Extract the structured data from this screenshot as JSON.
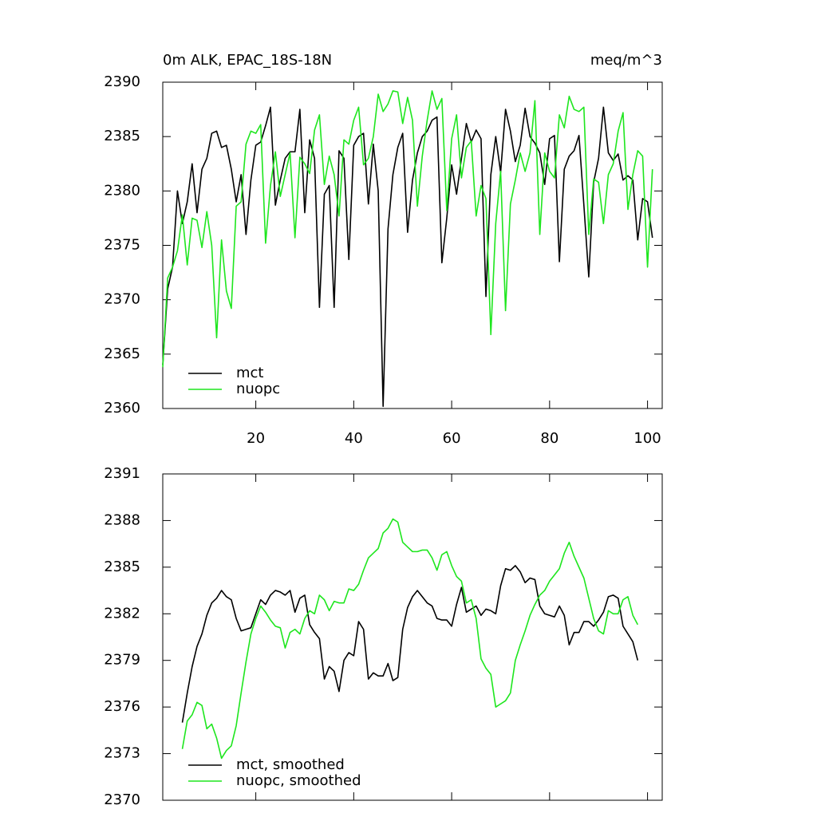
{
  "chart_data": [
    {
      "type": "line",
      "title": "0m ALK, EPAC_18S-18N",
      "subtitle": "meq/m^3",
      "x": [
        1,
        2,
        3,
        4,
        5,
        6,
        7,
        8,
        9,
        10,
        11,
        12,
        13,
        14,
        15,
        16,
        17,
        18,
        19,
        20,
        21,
        22,
        23,
        24,
        25,
        26,
        27,
        28,
        29,
        30,
        31,
        32,
        33,
        34,
        35,
        36,
        37,
        38,
        39,
        40,
        41,
        42,
        43,
        44,
        45,
        46,
        47,
        48,
        49,
        50,
        51,
        52,
        53,
        54,
        55,
        56,
        57,
        58,
        59,
        60,
        61,
        62,
        63,
        64,
        65,
        66,
        67,
        68,
        69,
        70,
        71,
        72,
        73,
        74,
        75,
        76,
        77,
        78,
        79,
        80,
        81,
        82,
        83,
        84,
        85,
        86,
        87,
        88,
        89,
        90,
        91,
        92,
        93,
        94,
        95,
        96,
        97,
        98,
        99,
        100,
        101
      ],
      "series": [
        {
          "name": "mct",
          "color": "#000000",
          "values": [
            2364,
            2371,
            2373,
            2380,
            2377,
            2379,
            2382.5,
            2378,
            2382,
            2383,
            2385.3,
            2385.5,
            2384,
            2384.2,
            2382,
            2379,
            2381.5,
            2376,
            2381,
            2384.2,
            2384.5,
            2386,
            2387.7,
            2378.7,
            2381,
            2383,
            2383.6,
            2383.6,
            2387.5,
            2378,
            2384.7,
            2383,
            2369.3,
            2379.7,
            2380.5,
            2369.3,
            2383.7,
            2383,
            2373.7,
            2384.2,
            2385,
            2385.3,
            2378.8,
            2384.3,
            2380,
            2360.2,
            2376.5,
            2381.5,
            2384,
            2385.3,
            2376.2,
            2381,
            2383.5,
            2385,
            2385.5,
            2386.5,
            2386.8,
            2373.4,
            2377.5,
            2382.4,
            2379.7,
            2383,
            2386.2,
            2384.5,
            2385.6,
            2384.8,
            2370.3,
            2381.5,
            2385,
            2381.7,
            2387.5,
            2385.5,
            2382.7,
            2384.2,
            2387.6,
            2385,
            2384.4,
            2383.5,
            2380.6,
            2384.8,
            2385.1,
            2373.5,
            2382,
            2383.2,
            2383.7,
            2385.1,
            2378.7,
            2372.1,
            2380.8,
            2383,
            2387.7,
            2383.5,
            2382.8,
            2383.4,
            2381,
            2381.4,
            2381,
            2375.5,
            2379.3,
            2379,
            2375.7
          ]
        },
        {
          "name": "nuopc",
          "color": "#1ee61e",
          "values": [
            2363.8,
            2372,
            2373,
            2374.5,
            2377.8,
            2373.2,
            2377.5,
            2377.3,
            2374.8,
            2378.1,
            2375,
            2366.5,
            2375.5,
            2370.8,
            2369.2,
            2378.6,
            2379,
            2384.3,
            2385.5,
            2385.3,
            2386.1,
            2375.2,
            2380.5,
            2383.6,
            2379.5,
            2381.5,
            2383.5,
            2375.7,
            2383.1,
            2382.5,
            2381.6,
            2385.6,
            2387,
            2380.6,
            2383.2,
            2381.5,
            2377.7,
            2384.7,
            2384.3,
            2386.5,
            2387.7,
            2382.4,
            2383,
            2385,
            2388.9,
            2387.3,
            2388,
            2389.2,
            2389.1,
            2386.2,
            2388.6,
            2386.5,
            2378.6,
            2383.2,
            2386.5,
            2389.2,
            2387.5,
            2388.5,
            2378.2,
            2384.8,
            2387,
            2381.2,
            2384,
            2384.6,
            2377.7,
            2380.5,
            2379.3,
            2366.8,
            2377,
            2381.8,
            2369,
            2378.8,
            2381,
            2383.5,
            2381.8,
            2383.5,
            2388.3,
            2376,
            2383.5,
            2381.8,
            2381.2,
            2387,
            2385.8,
            2388.7,
            2387.5,
            2387.3,
            2387.7,
            2376,
            2381.1,
            2380.8,
            2377,
            2381.5,
            2382.5,
            2385.5,
            2387.2,
            2378.3,
            2381.5,
            2383.7,
            2383.2,
            2373,
            2382
          ]
        }
      ],
      "xlim": [
        1,
        103
      ],
      "xticks": [
        20,
        40,
        60,
        80,
        100
      ],
      "show_xtick_labels": true,
      "ylim": [
        2360,
        2390
      ],
      "yticks": [
        2360,
        2365,
        2370,
        2375,
        2380,
        2385,
        2390
      ],
      "legend": "lower left"
    },
    {
      "type": "line",
      "x": [
        5,
        6,
        7,
        8,
        9,
        10,
        11,
        12,
        13,
        14,
        15,
        16,
        17,
        18,
        19,
        20,
        21,
        22,
        23,
        24,
        25,
        26,
        27,
        28,
        29,
        30,
        31,
        32,
        33,
        34,
        35,
        36,
        37,
        38,
        39,
        40,
        41,
        42,
        43,
        44,
        45,
        46,
        47,
        48,
        49,
        50,
        51,
        52,
        53,
        54,
        55,
        56,
        57,
        58,
        59,
        60,
        61,
        62,
        63,
        64,
        65,
        66,
        67,
        68,
        69,
        70,
        71,
        72,
        73,
        74,
        75,
        76,
        77,
        78,
        79,
        80,
        81,
        82,
        83,
        84,
        85,
        86,
        87,
        88,
        89,
        90,
        91,
        92,
        93,
        94,
        95,
        96,
        97,
        98
      ],
      "series": [
        {
          "name": "mct, smoothed",
          "color": "#000000",
          "values": [
            2375,
            2376.9,
            2378.6,
            2379.9,
            2380.7,
            2381.9,
            2382.7,
            2383,
            2383.5,
            2383.1,
            2382.9,
            2381.7,
            2380.9,
            2381,
            2381.1,
            2382,
            2382.9,
            2382.6,
            2383.2,
            2383.5,
            2383.4,
            2383.2,
            2383.5,
            2382.1,
            2383,
            2383.2,
            2381.3,
            2380.8,
            2380.4,
            2377.8,
            2378.6,
            2378.3,
            2377,
            2379,
            2379.5,
            2379.3,
            2381.5,
            2381,
            2377.8,
            2378.2,
            2378,
            2378,
            2378.8,
            2377.7,
            2377.9,
            2381,
            2382.4,
            2383.1,
            2383.5,
            2383.1,
            2382.7,
            2382.5,
            2381.7,
            2381.6,
            2381.6,
            2381.2,
            2382.6,
            2383.7,
            2382.1,
            2382.3,
            2382.5,
            2381.9,
            2382.3,
            2382.2,
            2382,
            2383.8,
            2384.9,
            2384.8,
            2385.1,
            2384.7,
            2384,
            2384.3,
            2384.2,
            2382.5,
            2382,
            2381.9,
            2381.8,
            2382.5,
            2381.9,
            2380,
            2380.8,
            2380.8,
            2381.5,
            2381.5,
            2381.2,
            2381.6,
            2382.1,
            2383.1,
            2383.2,
            2383,
            2381.2,
            2380.7,
            2380.2,
            2379
          ]
        },
        {
          "name": "nuopc, smoothed",
          "color": "#1ee61e",
          "values": [
            2373.3,
            2375.1,
            2375.5,
            2376.3,
            2376.1,
            2374.6,
            2374.9,
            2374,
            2372.7,
            2373.2,
            2373.5,
            2374.8,
            2376.9,
            2378.9,
            2380.7,
            2381.7,
            2382.5,
            2382.1,
            2381.6,
            2381.2,
            2381.1,
            2379.8,
            2380.8,
            2381,
            2380.7,
            2381.7,
            2382.2,
            2382,
            2383.2,
            2382.9,
            2382.2,
            2382.8,
            2382.7,
            2382.7,
            2383.6,
            2383.5,
            2383.9,
            2384.8,
            2385.6,
            2385.9,
            2386.2,
            2387.2,
            2387.5,
            2388.1,
            2387.9,
            2386.6,
            2386.3,
            2386,
            2386,
            2386.1,
            2386.1,
            2385.6,
            2384.8,
            2385.8,
            2386,
            2385.1,
            2384.4,
            2384.1,
            2382.7,
            2382.9,
            2381.7,
            2379.1,
            2378.5,
            2378.1,
            2376,
            2376.2,
            2376.4,
            2376.9,
            2379,
            2380,
            2380.9,
            2381.9,
            2382.6,
            2383.2,
            2383.5,
            2384.1,
            2384.5,
            2384.9,
            2385.9,
            2386.6,
            2385.7,
            2385,
            2384.3,
            2383,
            2381.7,
            2380.9,
            2380.7,
            2382.2,
            2382,
            2382,
            2382.9,
            2383.1,
            2381.9,
            2381.3
          ]
        }
      ],
      "xlim": [
        1,
        103
      ],
      "xticks": [
        20,
        40,
        60,
        80,
        100
      ],
      "show_xtick_labels": false,
      "ylim": [
        2370,
        2391
      ],
      "yticks": [
        2370,
        2373,
        2376,
        2379,
        2382,
        2385,
        2388,
        2391
      ],
      "legend": "lower left"
    }
  ]
}
